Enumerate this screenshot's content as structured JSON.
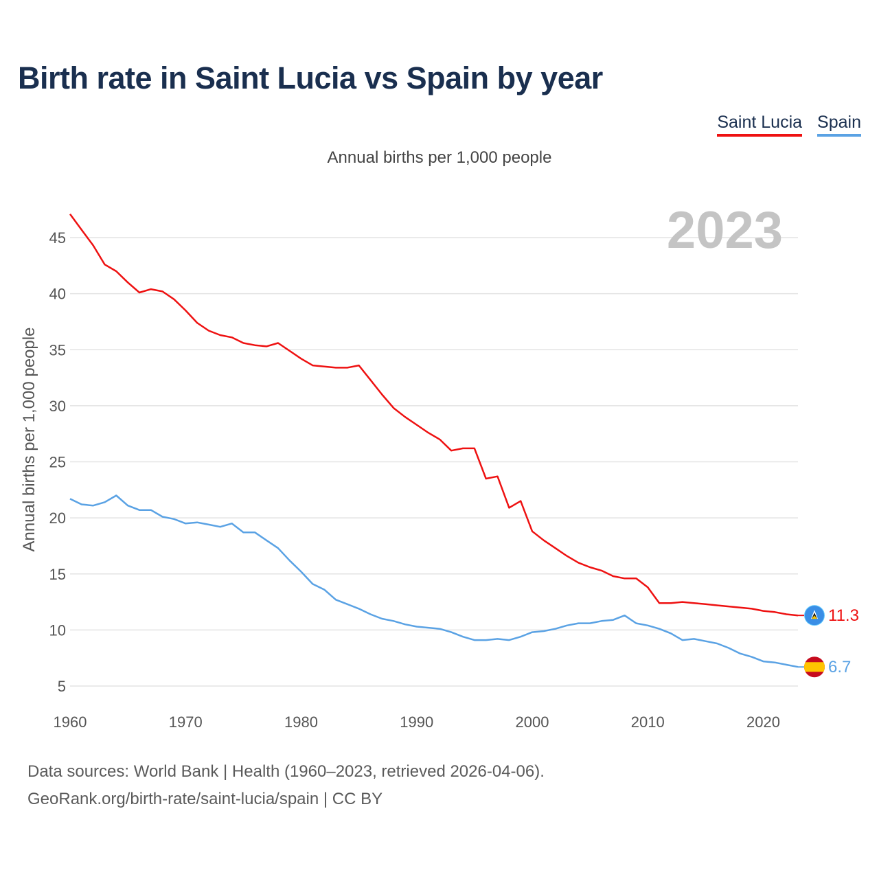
{
  "header": {
    "title": "Birth rate in Saint Lucia vs Spain by year",
    "subtitle": "Annual births per 1,000 people"
  },
  "legend": {
    "items": [
      {
        "label": "Saint Lucia",
        "color": "#ee1111"
      },
      {
        "label": "Spain",
        "color": "#5aa2e4"
      }
    ]
  },
  "footer": {
    "line1": "Data sources: World Bank | Health (1960–2023, retrieved 2026-04-06).",
    "line2": "GeoRank.org/birth-rate/saint-lucia/spain | CC BY"
  },
  "chart_data": {
    "type": "line",
    "title": "Birth rate in Saint Lucia vs Spain by year",
    "ylabel": "Annual births per 1,000 people",
    "xlabel": "",
    "year_label": "2023",
    "xlim": [
      1960,
      2023
    ],
    "ylim": [
      3,
      48
    ],
    "x_ticks": [
      1960,
      1970,
      1980,
      1990,
      2000,
      2010,
      2020
    ],
    "y_ticks": [
      5,
      10,
      15,
      20,
      25,
      30,
      35,
      40,
      45
    ],
    "grid": true,
    "x": [
      1960,
      1961,
      1962,
      1963,
      1964,
      1965,
      1966,
      1967,
      1968,
      1969,
      1970,
      1971,
      1972,
      1973,
      1974,
      1975,
      1976,
      1977,
      1978,
      1979,
      1980,
      1981,
      1982,
      1983,
      1984,
      1985,
      1986,
      1987,
      1988,
      1989,
      1990,
      1991,
      1992,
      1993,
      1994,
      1995,
      1996,
      1997,
      1998,
      1999,
      2000,
      2001,
      2002,
      2003,
      2004,
      2005,
      2006,
      2007,
      2008,
      2009,
      2010,
      2011,
      2012,
      2013,
      2014,
      2015,
      2016,
      2017,
      2018,
      2019,
      2020,
      2021,
      2022,
      2023
    ],
    "series": [
      {
        "name": "Saint Lucia",
        "color": "#ee1111",
        "end_label": "11.3",
        "values": [
          47.1,
          45.7,
          44.3,
          42.6,
          42.0,
          41.0,
          40.1,
          40.4,
          40.2,
          39.5,
          38.5,
          37.4,
          36.7,
          36.3,
          36.1,
          35.6,
          35.4,
          35.3,
          35.6,
          34.9,
          34.2,
          33.6,
          33.5,
          33.4,
          33.4,
          33.6,
          32.3,
          31.0,
          29.8,
          29.0,
          28.3,
          27.6,
          27.0,
          26.0,
          26.2,
          26.2,
          23.5,
          23.7,
          20.9,
          21.5,
          18.8,
          18.0,
          17.3,
          16.6,
          16.0,
          15.6,
          15.3,
          14.8,
          14.6,
          14.6,
          13.8,
          12.4,
          12.4,
          12.5,
          12.4,
          12.3,
          12.2,
          12.1,
          12.0,
          11.9,
          11.7,
          11.6,
          11.4,
          11.3
        ]
      },
      {
        "name": "Spain",
        "color": "#5aa2e4",
        "end_label": "6.7",
        "values": [
          21.7,
          21.2,
          21.1,
          21.4,
          22.0,
          21.1,
          20.7,
          20.7,
          20.1,
          19.9,
          19.5,
          19.6,
          19.4,
          19.2,
          19.5,
          18.7,
          18.7,
          18.0,
          17.3,
          16.2,
          15.2,
          14.1,
          13.6,
          12.7,
          12.3,
          11.9,
          11.4,
          11.0,
          10.8,
          10.5,
          10.3,
          10.2,
          10.1,
          9.8,
          9.4,
          9.1,
          9.1,
          9.2,
          9.1,
          9.4,
          9.8,
          9.9,
          10.1,
          10.4,
          10.6,
          10.6,
          10.8,
          10.9,
          11.3,
          10.6,
          10.4,
          10.1,
          9.7,
          9.1,
          9.2,
          9.0,
          8.8,
          8.4,
          7.9,
          7.6,
          7.2,
          7.1,
          6.9,
          6.7
        ]
      }
    ]
  }
}
